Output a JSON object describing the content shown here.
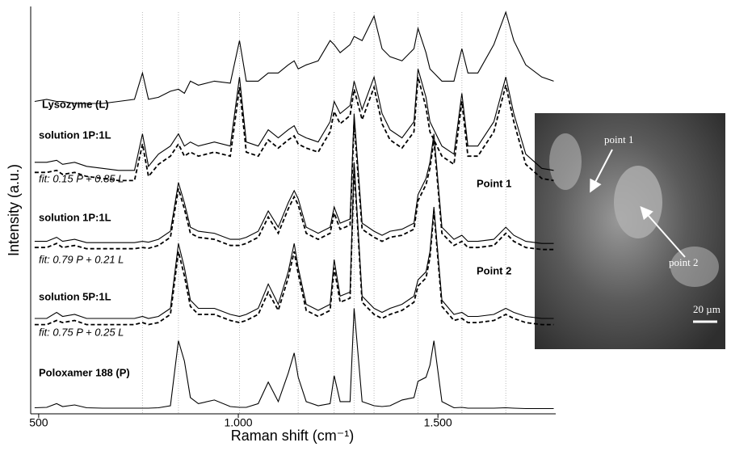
{
  "chart_data": {
    "type": "line",
    "xlabel": "Raman shift (cm⁻¹)",
    "ylabel": "Intensity (a.u.)",
    "xlim": [
      480,
      1795
    ],
    "ylim": [
      0,
      100
    ],
    "xticks": [
      500,
      {
        "value": 1000,
        "label": "1.000"
      },
      {
        "value": 1500,
        "label": "1.500"
      }
    ],
    "reference_lines": [
      760,
      850,
      1003,
      1150,
      1240,
      1290,
      1340,
      1450,
      1560,
      1670
    ],
    "x": [
      490,
      520,
      545,
      560,
      590,
      620,
      660,
      700,
      740,
      760,
      775,
      800,
      830,
      850,
      865,
      880,
      900,
      940,
      980,
      1003,
      1020,
      1050,
      1075,
      1100,
      1125,
      1140,
      1150,
      1170,
      1200,
      1230,
      1240,
      1255,
      1280,
      1290,
      1310,
      1340,
      1360,
      1380,
      1410,
      1440,
      1450,
      1470,
      1480,
      1490,
      1510,
      1540,
      1560,
      1575,
      1600,
      1640,
      1670,
      1690,
      1720,
      1760,
      1790
    ],
    "series": [
      {
        "name": "Lysozyme (L)",
        "color": "#000000",
        "linestyle": "solid",
        "values": [
          77,
          77.5,
          77,
          77,
          76.5,
          76.5,
          76.5,
          77,
          77.5,
          84,
          77.5,
          78,
          79.5,
          80,
          79,
          82,
          81,
          82,
          81.5,
          92,
          82,
          82,
          84,
          84,
          86,
          87,
          85,
          86,
          87,
          92,
          91,
          89,
          91,
          93,
          92,
          98,
          90,
          88,
          87,
          90,
          95,
          89,
          85,
          84,
          82,
          82,
          90,
          84,
          84,
          91,
          99,
          92,
          86,
          83,
          82
        ]
      },
      {
        "name": "solution 1P:1L",
        "color": "#000000",
        "linestyle": "solid",
        "values": [
          62,
          62,
          62.5,
          61.5,
          62,
          61,
          60.5,
          60,
          60,
          69,
          61,
          64,
          66,
          69,
          66,
          67,
          66,
          67,
          66,
          83,
          67,
          66,
          70,
          68,
          70,
          71,
          69,
          68,
          67,
          72,
          77,
          74,
          76,
          82,
          75,
          83,
          74,
          70,
          68,
          72,
          85,
          78,
          72,
          70,
          66,
          64,
          79,
          66,
          66,
          72,
          83,
          74,
          64,
          60.5,
          60
        ]
      },
      {
        "name": "fit: 0.15 P + 0.85 L",
        "color": "#000000",
        "linestyle": "dashed",
        "values": [
          59.5,
          59.5,
          60,
          59,
          59.5,
          58.5,
          58,
          57.5,
          57.5,
          66.5,
          58.5,
          61.5,
          63.5,
          66.5,
          63.5,
          64.5,
          63.5,
          64.5,
          63.5,
          80.5,
          64.5,
          63.5,
          67.5,
          65.5,
          67.5,
          68.5,
          66.5,
          65.5,
          64.5,
          69.5,
          74.5,
          71.5,
          73.5,
          80,
          72.5,
          80.5,
          71.5,
          67.5,
          65.5,
          69.5,
          83,
          75.5,
          69.5,
          67.5,
          63.5,
          61.5,
          77,
          63.5,
          63.5,
          69.5,
          81,
          72,
          61.5,
          58,
          57.5
        ]
      },
      {
        "name": "solution 1P:1L",
        "color": "#000000",
        "linestyle": "solid",
        "values": [
          42.5,
          42.5,
          43.5,
          42.5,
          43,
          42.2,
          42.2,
          42.2,
          42.2,
          42.5,
          42.3,
          43,
          45,
          57,
          52,
          46,
          45,
          44.5,
          43,
          43,
          43.5,
          45,
          50,
          46,
          52,
          55,
          53,
          46,
          44.5,
          46,
          51,
          47,
          48,
          74,
          47,
          45,
          44,
          45,
          45.5,
          47,
          54,
          58,
          62,
          69,
          46,
          43,
          44,
          42.5,
          42.5,
          43,
          46,
          44,
          42.5,
          42,
          42
        ]
      },
      {
        "name": "fit: 0.79 P + 0.21 L",
        "color": "#000000",
        "linestyle": "dashed",
        "values": [
          41,
          41,
          42,
          41,
          41.5,
          40.7,
          40.7,
          40.7,
          40.7,
          41,
          40.8,
          41.5,
          43.5,
          55.5,
          50.5,
          44.5,
          43.5,
          43,
          41.5,
          41.5,
          42,
          43.5,
          48.5,
          44.5,
          50.5,
          53.5,
          51.5,
          44.5,
          43,
          44.5,
          49.5,
          45.5,
          46.5,
          72,
          45.5,
          43.5,
          42.5,
          43.5,
          44,
          45.5,
          52.5,
          56.5,
          60.5,
          67.5,
          44.5,
          41.5,
          42.5,
          41,
          41,
          41.5,
          44.5,
          42.5,
          41,
          40.5,
          40.5
        ]
      },
      {
        "name": "solution 5P:1L",
        "color": "#000000",
        "linestyle": "solid",
        "values": [
          23.5,
          23.5,
          25,
          24,
          24.5,
          23.5,
          23.5,
          23.5,
          23.5,
          24,
          23.5,
          24,
          26,
          42,
          36,
          28,
          26,
          26,
          24.5,
          24,
          24.5,
          26,
          32,
          27,
          35,
          42,
          36,
          27,
          25.5,
          27,
          38,
          29,
          30,
          62,
          29,
          26,
          25,
          26,
          27,
          29,
          33,
          35,
          40,
          51,
          28,
          24.5,
          25,
          24,
          24,
          24.5,
          26,
          25,
          24,
          23.5,
          23.5
        ]
      },
      {
        "name": "fit: 0.75 P + 0.25 L",
        "color": "#000000",
        "linestyle": "dashed",
        "values": [
          22,
          22,
          23,
          22.5,
          23,
          22,
          22,
          22,
          22,
          22.5,
          22,
          22.5,
          24.5,
          40,
          34,
          26.5,
          24.5,
          24.5,
          23,
          22.5,
          23,
          24.5,
          30,
          25.5,
          33.5,
          40,
          34.5,
          25.5,
          24,
          25.5,
          36,
          27.5,
          28.5,
          61,
          27.5,
          24.5,
          23.5,
          24.5,
          25.5,
          27.5,
          31.5,
          33.5,
          38.5,
          50,
          26.5,
          23,
          23.5,
          22.5,
          22.5,
          23,
          24.5,
          23.5,
          22.5,
          22,
          22
        ]
      },
      {
        "name": "Poloxamer 188 (P)",
        "color": "#000000",
        "linestyle": "solid",
        "values": [
          1.5,
          1.6,
          2.5,
          1.8,
          2.2,
          1.5,
          1.4,
          1.4,
          1.4,
          1.4,
          1.4,
          1.5,
          2,
          18,
          13,
          4,
          2.5,
          3.4,
          1.8,
          1.6,
          1.6,
          2.5,
          7.8,
          3,
          10,
          15,
          9,
          3,
          2,
          2.5,
          9.4,
          3,
          3,
          26,
          3,
          2,
          1.8,
          2,
          3.4,
          4,
          8,
          9,
          12,
          18,
          3,
          1.5,
          1.6,
          1.4,
          1.4,
          1.4,
          1.5,
          1.4,
          1.3,
          1.3,
          1.3
        ]
      }
    ],
    "annotations": [
      "Point 1",
      "Point 2"
    ],
    "inset_labels": [
      "point 1",
      "point 2",
      "20 µm"
    ]
  }
}
